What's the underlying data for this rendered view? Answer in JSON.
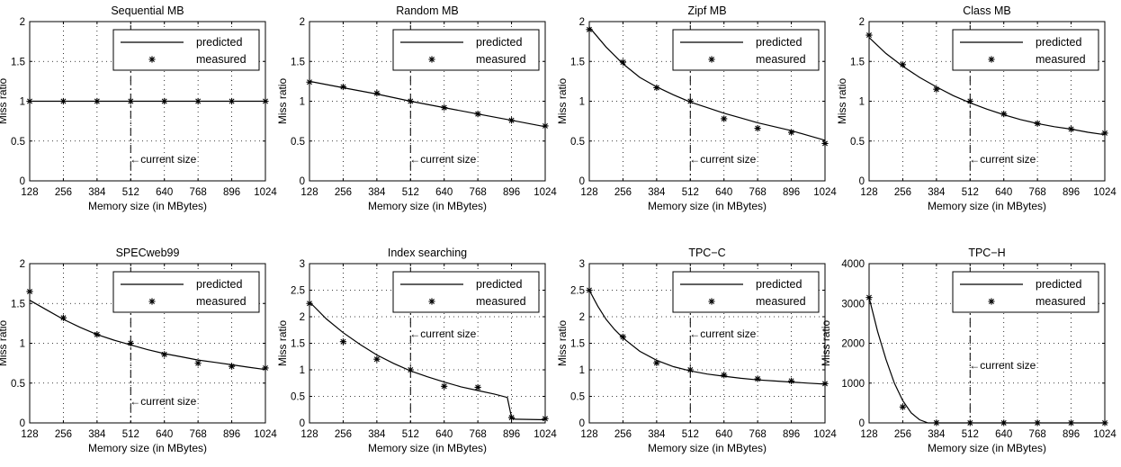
{
  "chart_data": [
    {
      "type": "line",
      "title": "Sequential MB",
      "xlabel": "Memory size (in MBytes)",
      "ylabel": "Miss ratio",
      "x_ticks": [
        128,
        256,
        384,
        512,
        640,
        768,
        896,
        1024
      ],
      "xlim": [
        128,
        1024
      ],
      "ylim": [
        0,
        2
      ],
      "y_ticks": [
        "0",
        "0.5",
        "1",
        "1.5",
        "2"
      ],
      "y_tick_values": [
        0,
        0.5,
        1,
        1.5,
        2
      ],
      "grid": "dotted",
      "legend": "top-right",
      "series": [
        {
          "name": "predicted",
          "style": "line",
          "x": [
            128,
            1024
          ],
          "y": [
            1.0,
            1.0
          ]
        },
        {
          "name": "measured",
          "style": "star",
          "x": [
            128,
            256,
            384,
            512,
            640,
            768,
            896,
            1024
          ],
          "y": [
            1.0,
            1.0,
            1.0,
            1.0,
            1.0,
            1.0,
            1.0,
            1.0
          ]
        }
      ],
      "annotation": {
        "text": "←current size",
        "x": 512,
        "y": 0.27
      }
    },
    {
      "type": "line",
      "title": "Random MB",
      "xlabel": "Memory size (in MBytes)",
      "ylabel": "Miss ratio",
      "x_ticks": [
        128,
        256,
        384,
        512,
        640,
        768,
        896,
        1024
      ],
      "xlim": [
        128,
        1024
      ],
      "ylim": [
        0,
        2
      ],
      "y_ticks": [
        "0",
        "0.5",
        "1",
        "1.5",
        "2"
      ],
      "y_tick_values": [
        0,
        0.5,
        1,
        1.5,
        2
      ],
      "grid": "dotted",
      "legend": "top-right",
      "series": [
        {
          "name": "predicted",
          "style": "line",
          "x": [
            128,
            256,
            384,
            512,
            640,
            768,
            896,
            1024
          ],
          "y": [
            1.25,
            1.17,
            1.09,
            1.0,
            0.92,
            0.84,
            0.76,
            0.68
          ]
        },
        {
          "name": "measured",
          "style": "star",
          "x": [
            128,
            256,
            384,
            512,
            640,
            768,
            896,
            1024
          ],
          "y": [
            1.24,
            1.18,
            1.1,
            1.0,
            0.92,
            0.84,
            0.76,
            0.69
          ]
        }
      ],
      "annotation": {
        "text": "←current size",
        "x": 512,
        "y": 0.27
      }
    },
    {
      "type": "line",
      "title": "Zipf MB",
      "xlabel": "Memory size (in MBytes)",
      "ylabel": "Miss ratio",
      "x_ticks": [
        128,
        256,
        384,
        512,
        640,
        768,
        896,
        1024
      ],
      "xlim": [
        128,
        1024
      ],
      "ylim": [
        0,
        2
      ],
      "y_ticks": [
        "0",
        "0.5",
        "1",
        "1.5",
        "2"
      ],
      "y_tick_values": [
        0,
        0.5,
        1,
        1.5,
        2
      ],
      "grid": "dotted",
      "legend": "top-right",
      "series": [
        {
          "name": "predicted",
          "style": "line",
          "x": [
            128,
            192,
            256,
            320,
            384,
            448,
            512,
            576,
            640,
            704,
            768,
            832,
            896,
            960,
            1024
          ],
          "y": [
            1.93,
            1.68,
            1.47,
            1.3,
            1.18,
            1.08,
            0.99,
            0.92,
            0.85,
            0.79,
            0.73,
            0.68,
            0.63,
            0.57,
            0.51
          ]
        },
        {
          "name": "measured",
          "style": "star",
          "x": [
            128,
            256,
            384,
            512,
            640,
            768,
            896,
            1024
          ],
          "y": [
            1.9,
            1.49,
            1.17,
            1.0,
            0.78,
            0.66,
            0.61,
            0.47
          ]
        }
      ],
      "annotation": {
        "text": "←current size",
        "x": 512,
        "y": 0.27
      }
    },
    {
      "type": "line",
      "title": "Class MB",
      "xlabel": "Memory size (in MBytes)",
      "ylabel": "Miss ratio",
      "x_ticks": [
        128,
        256,
        384,
        512,
        640,
        768,
        896,
        1024
      ],
      "xlim": [
        128,
        1024
      ],
      "ylim": [
        0,
        2
      ],
      "y_ticks": [
        "0",
        "0.5",
        "1",
        "1.5",
        "2"
      ],
      "y_tick_values": [
        0,
        0.5,
        1,
        1.5,
        2
      ],
      "grid": "dotted",
      "legend": "top-right",
      "series": [
        {
          "name": "predicted",
          "style": "line",
          "x": [
            128,
            192,
            256,
            320,
            384,
            448,
            512,
            576,
            640,
            704,
            768,
            832,
            896,
            960,
            1024
          ],
          "y": [
            1.8,
            1.6,
            1.44,
            1.3,
            1.18,
            1.07,
            0.98,
            0.9,
            0.83,
            0.77,
            0.72,
            0.68,
            0.65,
            0.61,
            0.58
          ]
        },
        {
          "name": "measured",
          "style": "star",
          "x": [
            128,
            256,
            384,
            512,
            640,
            768,
            896,
            1024
          ],
          "y": [
            1.83,
            1.46,
            1.15,
            1.0,
            0.84,
            0.72,
            0.65,
            0.6
          ]
        }
      ],
      "annotation": {
        "text": "←current size",
        "x": 512,
        "y": 0.27
      }
    },
    {
      "type": "line",
      "title": "SPECweb99",
      "xlabel": "Memory size (in MBytes)",
      "ylabel": "Miss ratio",
      "x_ticks": [
        128,
        256,
        384,
        512,
        640,
        768,
        896,
        1024
      ],
      "xlim": [
        128,
        1024
      ],
      "ylim": [
        0,
        2
      ],
      "y_ticks": [
        "0",
        "0.5",
        "1",
        "1.5",
        "2"
      ],
      "y_tick_values": [
        0,
        0.5,
        1,
        1.5,
        2
      ],
      "grid": "dotted",
      "legend": "top-right",
      "series": [
        {
          "name": "predicted",
          "style": "line",
          "x": [
            128,
            192,
            256,
            320,
            384,
            448,
            512,
            576,
            640,
            704,
            768,
            832,
            896,
            960,
            1024
          ],
          "y": [
            1.54,
            1.42,
            1.3,
            1.2,
            1.11,
            1.04,
            0.98,
            0.92,
            0.87,
            0.83,
            0.79,
            0.76,
            0.73,
            0.7,
            0.67
          ]
        },
        {
          "name": "measured",
          "style": "star",
          "x": [
            128,
            256,
            384,
            512,
            640,
            768,
            896,
            1024
          ],
          "y": [
            1.65,
            1.32,
            1.11,
            1.0,
            0.86,
            0.75,
            0.71,
            0.69
          ]
        }
      ],
      "annotation": {
        "text": "←current size",
        "x": 512,
        "y": 0.27
      }
    },
    {
      "type": "line",
      "title": "Index searching",
      "xlabel": "Memory size (in MBytes)",
      "ylabel": "Miss ratio",
      "x_ticks": [
        128,
        256,
        384,
        512,
        640,
        768,
        896,
        1024
      ],
      "xlim": [
        128,
        1024
      ],
      "ylim": [
        0,
        3
      ],
      "y_ticks": [
        "0",
        "0.5",
        "1",
        "1.5",
        "2",
        "2.5",
        "3"
      ],
      "y_tick_values": [
        0,
        0.5,
        1,
        1.5,
        2,
        2.5,
        3
      ],
      "grid": "dotted",
      "legend": "top-right",
      "series": [
        {
          "name": "predicted",
          "style": "line",
          "x": [
            128,
            192,
            256,
            320,
            384,
            448,
            512,
            576,
            640,
            704,
            768,
            832,
            880,
            896,
            910,
            1024
          ],
          "y": [
            2.28,
            1.96,
            1.7,
            1.48,
            1.28,
            1.12,
            0.98,
            0.87,
            0.77,
            0.68,
            0.61,
            0.54,
            0.48,
            0.1,
            0.07,
            0.06
          ]
        },
        {
          "name": "measured",
          "style": "star",
          "x": [
            128,
            256,
            384,
            512,
            640,
            768,
            896,
            1024
          ],
          "y": [
            2.25,
            1.53,
            1.2,
            1.0,
            0.69,
            0.67,
            0.1,
            0.08
          ]
        }
      ],
      "annotation": {
        "text": "←current size",
        "x": 512,
        "y": 1.68
      }
    },
    {
      "type": "line",
      "title": "TPC−C",
      "xlabel": "Memory size (in MBytes)",
      "ylabel": "Miss ratio",
      "x_ticks": [
        128,
        256,
        384,
        512,
        640,
        768,
        896,
        1024
      ],
      "xlim": [
        128,
        1024
      ],
      "ylim": [
        0,
        3
      ],
      "y_ticks": [
        "0",
        "0.5",
        "1",
        "1.5",
        "2",
        "2.5",
        "3"
      ],
      "y_tick_values": [
        0,
        0.5,
        1,
        1.5,
        2,
        2.5,
        3
      ],
      "grid": "dotted",
      "legend": "top-right",
      "series": [
        {
          "name": "predicted",
          "style": "line",
          "x": [
            128,
            160,
            192,
            224,
            256,
            320,
            384,
            448,
            512,
            576,
            640,
            704,
            768,
            832,
            896,
            960,
            1024
          ],
          "y": [
            2.5,
            2.2,
            1.95,
            1.76,
            1.6,
            1.35,
            1.18,
            1.06,
            0.98,
            0.92,
            0.88,
            0.84,
            0.81,
            0.79,
            0.77,
            0.75,
            0.73
          ]
        },
        {
          "name": "measured",
          "style": "star",
          "x": [
            128,
            256,
            384,
            512,
            640,
            768,
            896,
            1024
          ],
          "y": [
            2.5,
            1.62,
            1.13,
            1.0,
            0.9,
            0.83,
            0.79,
            0.74
          ]
        }
      ],
      "annotation": {
        "text": "←current size",
        "x": 512,
        "y": 1.68
      }
    },
    {
      "type": "line",
      "title": "TPC−H",
      "xlabel": "Memory size (in MBytes)",
      "ylabel": "Miss ratio",
      "x_ticks": [
        128,
        256,
        384,
        512,
        640,
        768,
        896,
        1024
      ],
      "xlim": [
        128,
        1024
      ],
      "ylim": [
        0,
        4000
      ],
      "y_ticks": [
        "0",
        "1000",
        "2000",
        "3000",
        "4000"
      ],
      "y_tick_values": [
        0,
        1000,
        2000,
        3000,
        4000
      ],
      "grid": "dotted",
      "legend": "top-right",
      "series": [
        {
          "name": "predicted",
          "style": "line",
          "x": [
            128,
            160,
            192,
            224,
            256,
            288,
            320,
            352,
            1024
          ],
          "y": [
            3150,
            2300,
            1600,
            1000,
            560,
            250,
            80,
            0,
            0
          ]
        },
        {
          "name": "measured",
          "style": "star",
          "x": [
            128,
            256,
            384,
            512,
            640,
            768,
            896,
            1024
          ],
          "y": [
            3150,
            400,
            2,
            1,
            1,
            1,
            1,
            1
          ]
        }
      ],
      "annotation": {
        "text": "←current size",
        "x": 512,
        "y": 1450
      }
    }
  ]
}
